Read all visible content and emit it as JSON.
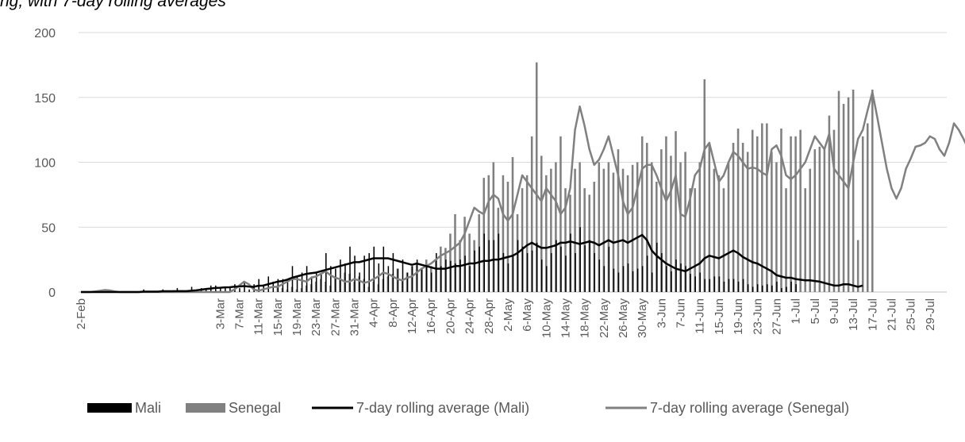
{
  "chart_data": {
    "type": "bar",
    "title": "ng, with 7-day rolling averages",
    "xlabel": "",
    "ylabel": "",
    "ylim": [
      0,
      200
    ],
    "yticks": [
      0,
      50,
      100,
      150,
      200
    ],
    "x_start": "2-Feb",
    "x_tick_labels": [
      "2-Feb",
      "3-Mar",
      "7-Mar",
      "11-Mar",
      "15-Mar",
      "19-Mar",
      "23-Mar",
      "27-Mar",
      "31-Mar",
      "4-Apr",
      "8-Apr",
      "12-Apr",
      "16-Apr",
      "20-Apr",
      "24-Apr",
      "28-Apr",
      "2-May",
      "6-May",
      "10-May",
      "14-May",
      "18-May",
      "22-May",
      "26-May",
      "30-May",
      "3-Jun",
      "7-Jun",
      "11-Jun",
      "15-Jun",
      "19-Jun",
      "23-Jun",
      "27-Jun",
      "1-Jul",
      "5-Jul",
      "9-Jul",
      "13-Jul",
      "17-Jul",
      "21-Jul",
      "25-Jul",
      "29-Jul"
    ],
    "grid": true,
    "legend_position": "bottom",
    "series": [
      {
        "name": "Mali",
        "kind": "bar",
        "color": "#000000",
        "values": [
          0,
          0,
          0,
          0,
          0,
          0,
          0,
          0,
          0,
          0,
          0,
          0,
          0,
          2,
          0,
          0,
          0,
          2,
          0,
          0,
          3,
          0,
          0,
          4,
          0,
          3,
          2,
          5,
          5,
          3,
          4,
          4,
          6,
          3,
          7,
          2,
          6,
          10,
          5,
          12,
          8,
          10,
          10,
          10,
          20,
          12,
          15,
          20,
          12,
          15,
          14,
          30,
          20,
          18,
          25,
          22,
          35,
          28,
          15,
          28,
          30,
          35,
          22,
          35,
          20,
          30,
          18,
          25,
          15,
          20,
          25,
          18,
          20,
          15,
          30,
          20,
          25,
          24,
          22,
          25,
          28,
          20,
          32,
          35,
          45,
          40,
          40,
          45,
          30,
          22,
          28,
          40,
          35,
          30,
          32,
          38,
          25,
          20,
          30,
          40,
          35,
          28,
          45,
          30,
          50,
          36,
          40,
          30,
          25,
          20,
          35,
          18,
          15,
          20,
          22,
          16,
          18,
          20,
          28,
          15,
          38,
          30,
          20,
          16,
          25,
          22,
          20,
          14,
          12,
          15,
          10,
          10,
          12,
          12,
          8,
          10,
          10,
          8,
          10,
          6,
          4,
          6,
          5,
          6,
          5,
          8,
          3,
          4,
          8,
          6
        ]
      },
      {
        "name": "Senegal",
        "kind": "bar",
        "color": "#808080",
        "values": [
          0,
          0,
          0,
          0,
          0,
          0,
          0,
          0,
          0,
          0,
          0,
          0,
          0,
          0,
          0,
          0,
          0,
          0,
          0,
          0,
          0,
          0,
          0,
          0,
          0,
          0,
          0,
          0,
          0,
          0,
          0,
          0,
          0,
          0,
          0,
          0,
          0,
          0,
          0,
          0,
          0,
          5,
          3,
          2,
          4,
          2,
          3,
          5,
          6,
          8,
          10,
          8,
          5,
          12,
          10,
          15,
          14,
          8,
          12,
          10,
          4,
          8,
          6,
          10,
          12,
          14,
          18,
          10,
          15,
          20,
          22,
          18,
          25,
          20,
          25,
          35,
          34,
          45,
          60,
          40,
          58,
          45,
          40,
          60,
          88,
          90,
          100,
          65,
          90,
          85,
          104,
          60,
          80,
          90,
          120,
          177,
          105,
          90,
          95,
          100,
          120,
          80,
          75,
          95,
          100,
          80,
          75,
          85,
          100,
          95,
          100,
          92,
          110,
          95,
          90,
          98,
          100,
          120,
          115,
          100,
          85,
          110,
          120,
          105,
          124,
          100,
          108,
          80,
          80,
          100,
          164,
          115,
          95,
          90,
          80,
          100,
          115,
          126,
          115,
          108,
          125,
          120,
          130,
          130,
          108,
          100,
          126,
          80,
          120,
          120,
          125,
          80,
          95,
          110,
          112,
          110,
          136,
          125,
          155,
          145,
          150,
          156,
          40,
          120,
          130,
          156
        ]
      },
      {
        "name": "7-day rolling average (Mali)",
        "kind": "line",
        "color": "#000000",
        "values": [
          0,
          0,
          0,
          0,
          0,
          0,
          0,
          0,
          0,
          0,
          0,
          0,
          0,
          0.3,
          0.3,
          0.3,
          0.3,
          0.6,
          0.6,
          0.6,
          0.7,
          0.7,
          0.7,
          1,
          1.3,
          1.8,
          2.3,
          2.7,
          3.1,
          3.3,
          3.6,
          3.7,
          4.1,
          4.3,
          4.6,
          4.2,
          4,
          4.8,
          5,
          6,
          7,
          8,
          8.5,
          9.5,
          11,
          12,
          13,
          14,
          14.5,
          15,
          16,
          17,
          18,
          19,
          20,
          21,
          22,
          23,
          23,
          24,
          25,
          26,
          26,
          26,
          26,
          25,
          24,
          23,
          22,
          21,
          22,
          21,
          20,
          19,
          18,
          18,
          18,
          19,
          20,
          20,
          21,
          22,
          22,
          23,
          24,
          24,
          25,
          25,
          26,
          27,
          28,
          30,
          33,
          36,
          38,
          36,
          34,
          34,
          35,
          36,
          38,
          38,
          39,
          38,
          37,
          38,
          39,
          38,
          36,
          38,
          40,
          38,
          39,
          40,
          38,
          40,
          42,
          44,
          40,
          32,
          28,
          25,
          22,
          20,
          18,
          17,
          16,
          18,
          20,
          22,
          26,
          28,
          27,
          26,
          28,
          30,
          32,
          30,
          27,
          25,
          23,
          22,
          20,
          18,
          16,
          13,
          12,
          11,
          11,
          10,
          9.5,
          9,
          9,
          8.5,
          8,
          7,
          6,
          5,
          5,
          6,
          6,
          5,
          4,
          5
        ]
      },
      {
        "name": "7-day rolling average (Senegal)",
        "kind": "line",
        "color": "#808080",
        "values": [
          0,
          0,
          0,
          0.5,
          1,
          1.5,
          1.2,
          0.5,
          0,
          0,
          0,
          0,
          0,
          0,
          0,
          0,
          0,
          0,
          0,
          0,
          0,
          0,
          0,
          0,
          0,
          0,
          0,
          0,
          0,
          0,
          0,
          0,
          2,
          5,
          8,
          6,
          2,
          1,
          2,
          3,
          4,
          4,
          6,
          8,
          10,
          10,
          9,
          8,
          11,
          12,
          14,
          16,
          13,
          11,
          10,
          8,
          8,
          10,
          9,
          7,
          8,
          10,
          12,
          15,
          14,
          12,
          10,
          9,
          11,
          12,
          15,
          18,
          20,
          22,
          25,
          28,
          30,
          32,
          35,
          38,
          45,
          55,
          65,
          62,
          60,
          70,
          75,
          72,
          60,
          55,
          60,
          75,
          90,
          85,
          80,
          75,
          70,
          80,
          75,
          70,
          60,
          65,
          80,
          125,
          143,
          128,
          110,
          98,
          102,
          110,
          120,
          105,
          90,
          70,
          60,
          65,
          80,
          95,
          98,
          98,
          90,
          80,
          70,
          78,
          90,
          60,
          58,
          72,
          90,
          95,
          110,
          115,
          100,
          85,
          90,
          100,
          108,
          105,
          100,
          95,
          96,
          95,
          92,
          90,
          110,
          113,
          105,
          90,
          87,
          90,
          95,
          100,
          110,
          120,
          115,
          110,
          122,
          95,
          90,
          85,
          80,
          100,
          118,
          125,
          140,
          154,
          135,
          115,
          95,
          80,
          72,
          80,
          95,
          103,
          112,
          113,
          115,
          120,
          118,
          110,
          105,
          115,
          130,
          125,
          118,
          110,
          115,
          120,
          112,
          100,
          90,
          80,
          75,
          100,
          115,
          120,
          112,
          110,
          115,
          125,
          100,
          80,
          55,
          70,
          100,
          120,
          112,
          90,
          85,
          100,
          120,
          137,
          140,
          110,
          88,
          88,
          100,
          130,
          146,
          152,
          145,
          135,
          118,
          100,
          80,
          62,
          90,
          120,
          150,
          140,
          135
        ]
      }
    ]
  }
}
